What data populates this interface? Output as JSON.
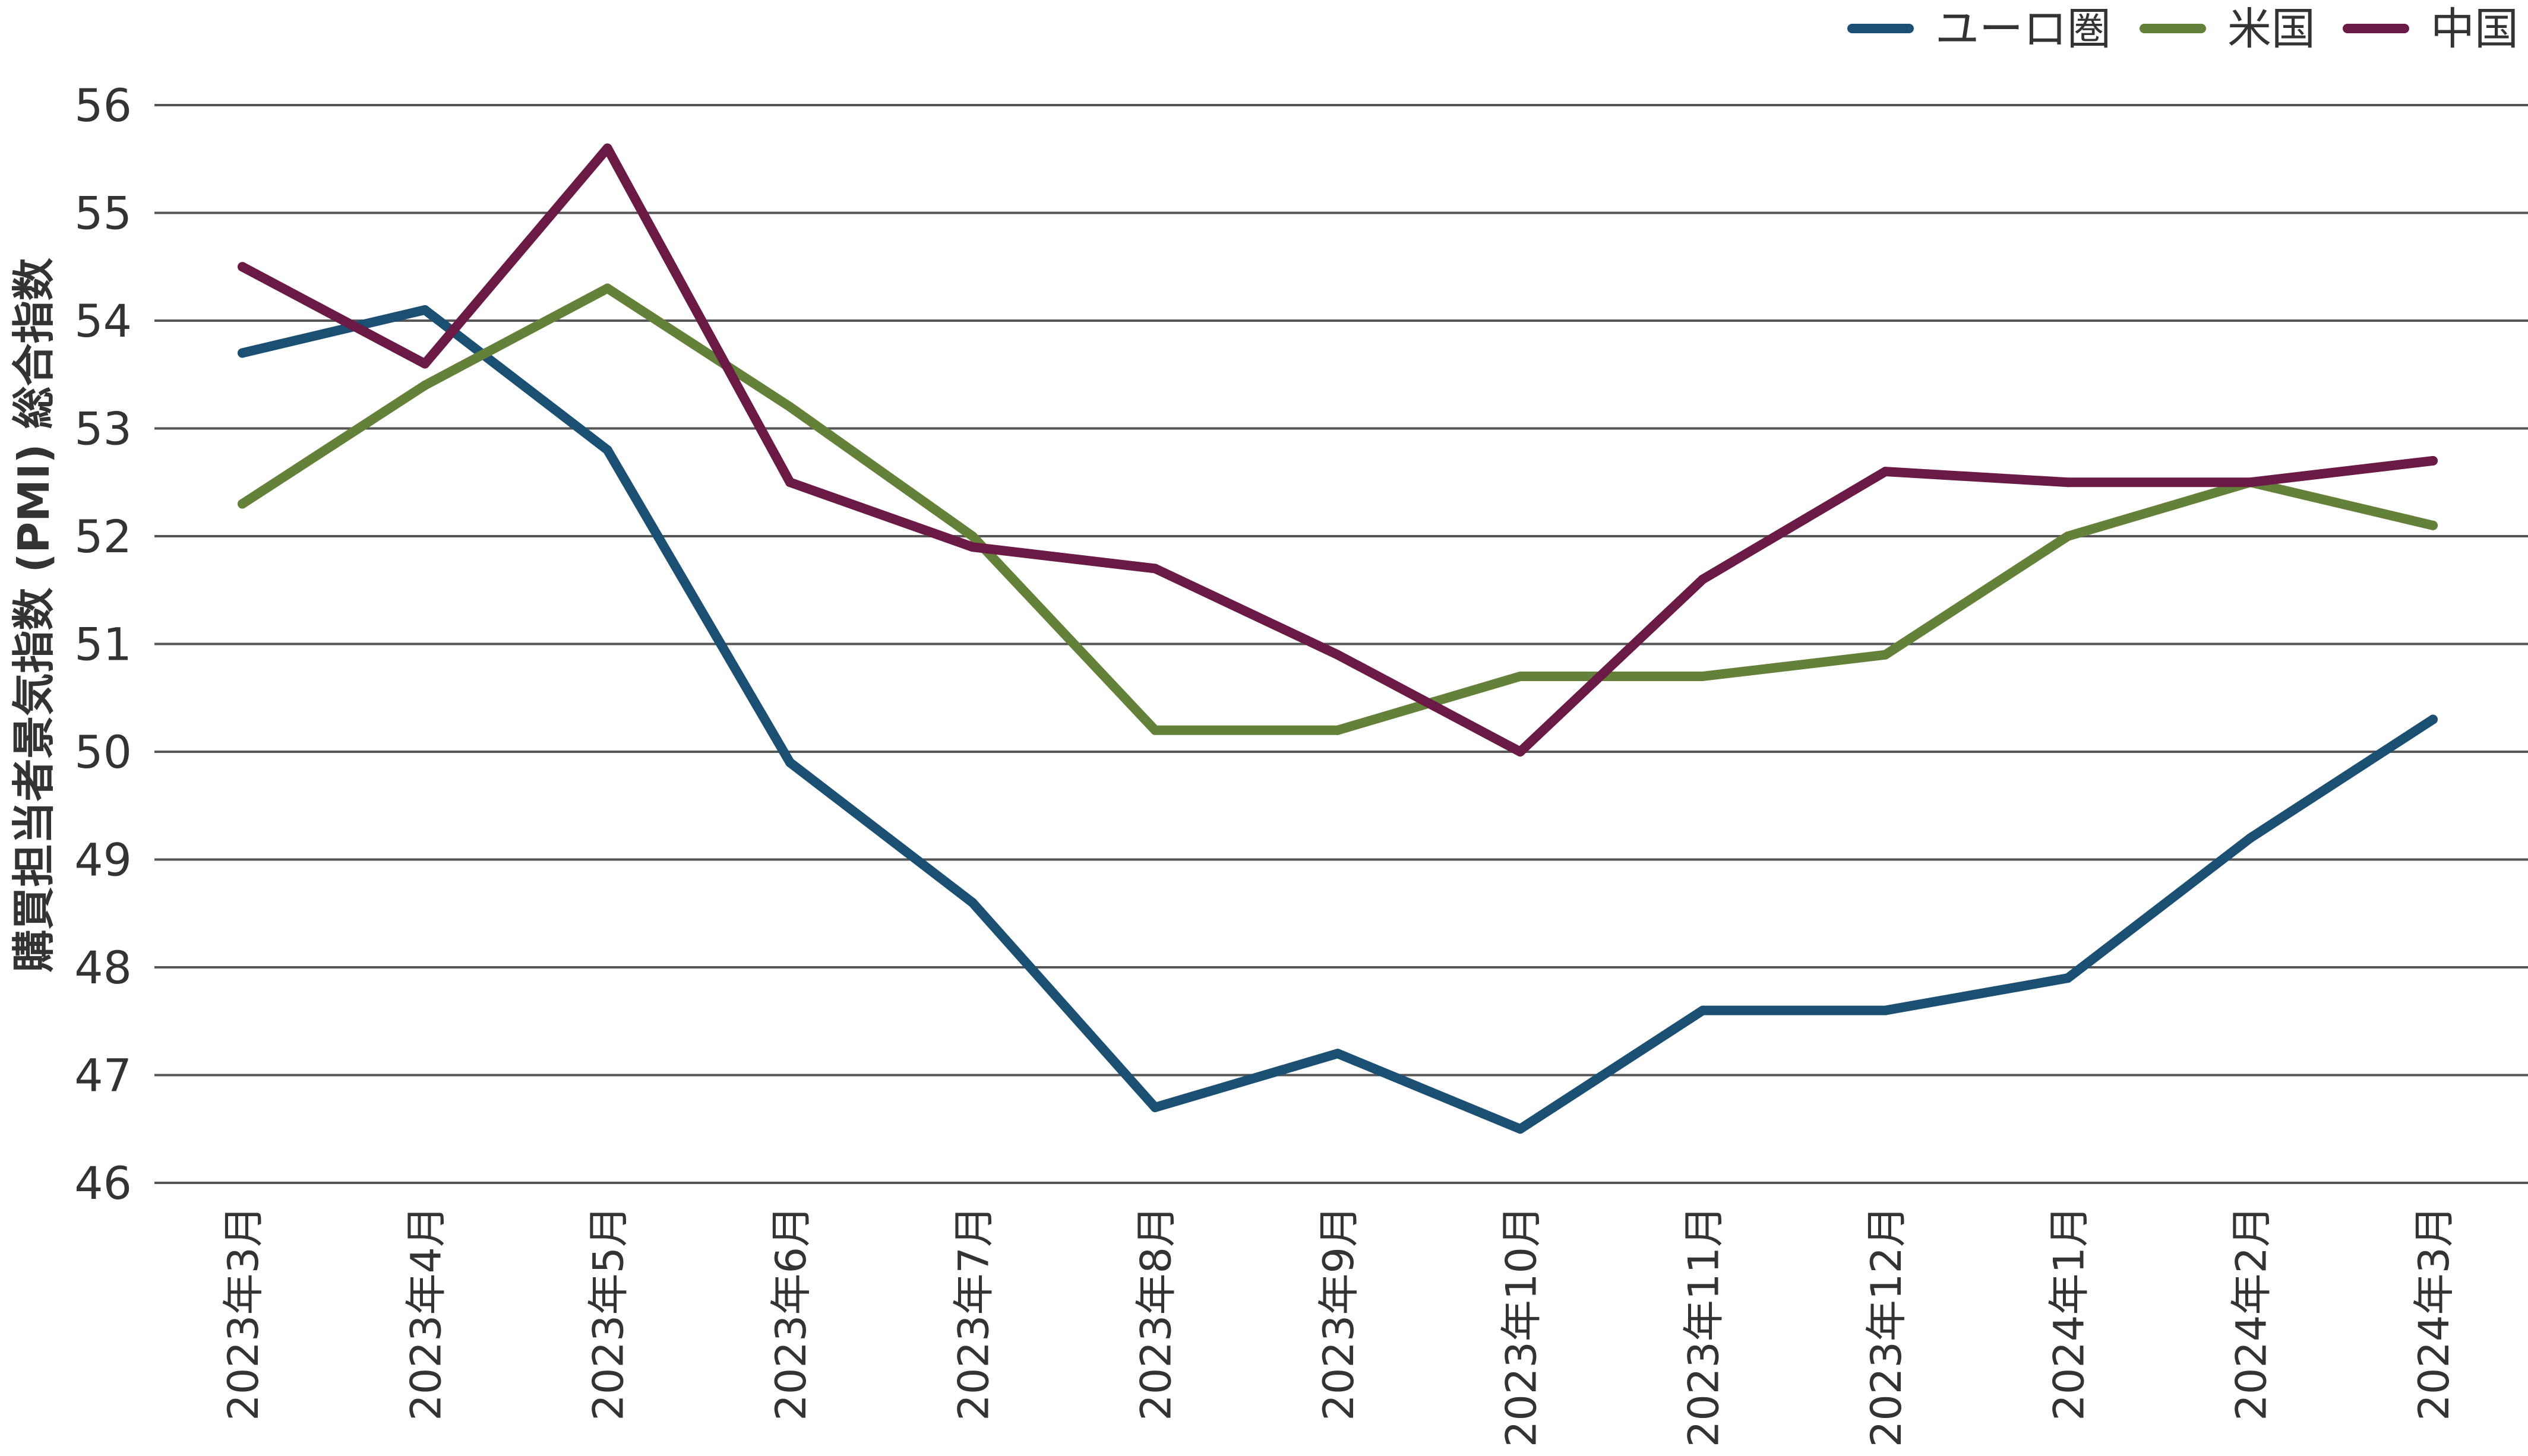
{
  "chart_data": {
    "type": "line",
    "title": "",
    "xlabel": "",
    "ylabel": "購買担当者景気指数 (PMI) 総合指数",
    "ylim": [
      46,
      56
    ],
    "yticks": [
      46,
      47,
      48,
      49,
      50,
      51,
      52,
      53,
      54,
      55,
      56
    ],
    "grid": true,
    "legend_position": "top-right",
    "categories": [
      "2023年3月",
      "2023年4月",
      "2023年5月",
      "2023年6月",
      "2023年7月",
      "2023年8月",
      "2023年9月",
      "2023年10月",
      "2023年11月",
      "2023年12月",
      "2024年1月",
      "2024年2月",
      "2024年3月"
    ],
    "series": [
      {
        "name": "ユーロ圏",
        "color": "#1b5073",
        "values": [
          53.7,
          54.1,
          52.8,
          49.9,
          48.6,
          46.7,
          47.2,
          46.5,
          47.6,
          47.6,
          47.9,
          49.2,
          50.3
        ]
      },
      {
        "name": "米国",
        "color": "#648139",
        "values": [
          52.3,
          53.4,
          54.3,
          53.2,
          52.0,
          50.2,
          50.2,
          50.7,
          50.7,
          50.9,
          52.0,
          52.5,
          52.1
        ]
      },
      {
        "name": "中国",
        "color": "#6a1a45",
        "values": [
          54.5,
          53.6,
          55.6,
          52.5,
          51.9,
          51.7,
          50.9,
          50.0,
          51.6,
          52.6,
          52.5,
          52.5,
          52.7
        ]
      }
    ]
  }
}
